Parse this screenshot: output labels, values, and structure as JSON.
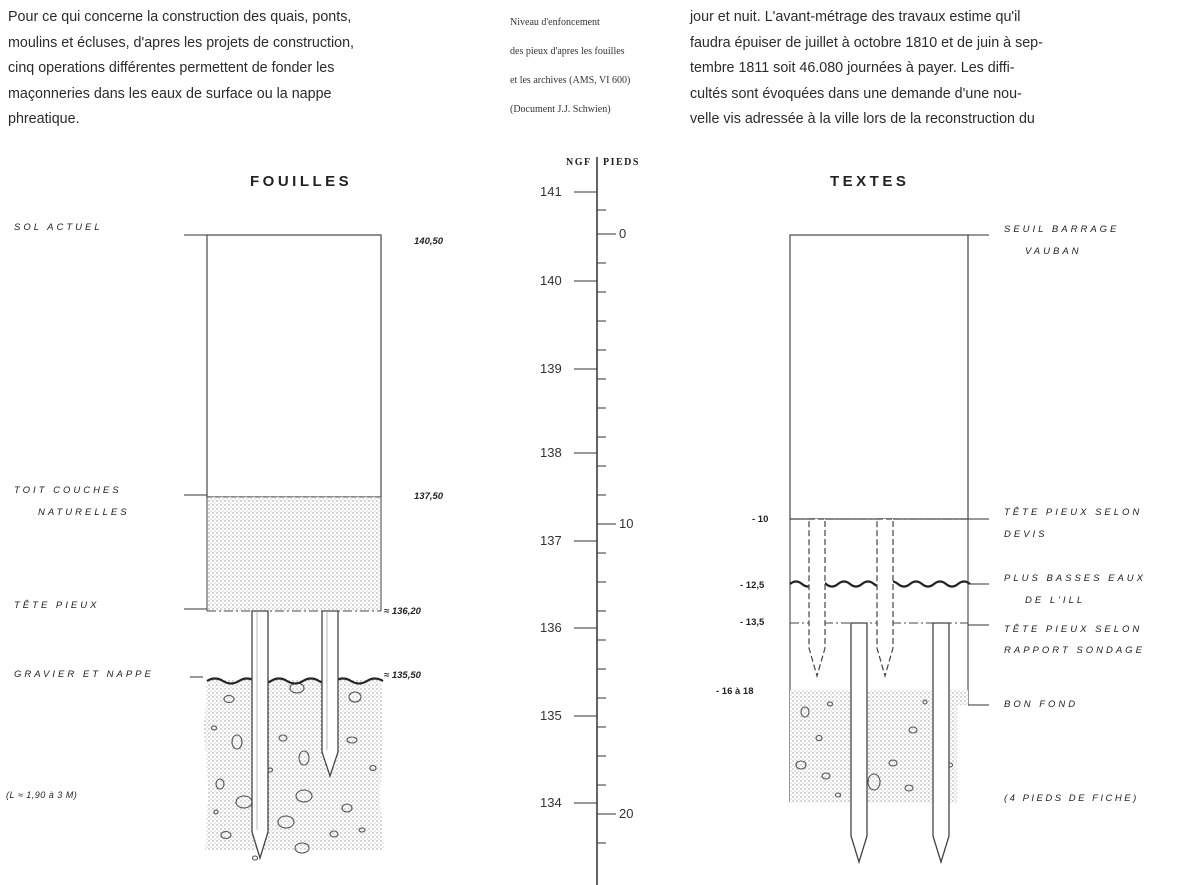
{
  "left_paragraph": [
    "Pour ce qui concerne la construction des quais, ponts,",
    "moulins et écluses, d'apres les projets de construction,",
    "cinq operations différentes permettent de fonder les",
    "maçonneries dans les eaux de surface ou la nappe",
    "phreatique."
  ],
  "caption": [
    "Niveau d'enfoncement",
    "des pieux d'apres les fouilles",
    "et les archives (AMS, VI 600)",
    "(Document J.J. Schwien)"
  ],
  "right_paragraph": [
    "jour et nuit. L'avant-métrage des travaux estime qu'il",
    "faudra épuiser de juillet à octobre 1810 et de juin à sep-",
    "tembre 1811 soit 46.080 journées à payer. Les diffi-",
    "cultés sont évoquées dans une demande d'une nou-",
    "velle vis adressée à la ville lors de la reconstruction du"
  ],
  "fouilles": {
    "title": "FOUILLES",
    "labels": {
      "sol_actuel": "SOL ACTUEL",
      "toit_1": "TOIT COUCHES",
      "toit_2": "NATURELLES",
      "tete_pieux": "TÊTE PIEUX",
      "gravier": "GRAVIER ET NAPPE",
      "length_note": "(L ≈ 1,90 à 3 M)"
    },
    "values": {
      "sol_actuel": "140,50",
      "toit": "137,50",
      "tete_pieux": "≈ 136,20",
      "gravier": "≈ 135,50"
    }
  },
  "scale": {
    "left_header": "NGF",
    "right_header": "PIEDS",
    "ngf_ticks": [
      "141",
      "140",
      "139",
      "138",
      "137",
      "136",
      "135",
      "134"
    ],
    "pieds_ticks": [
      "0",
      "10",
      "20"
    ]
  },
  "textes": {
    "title": "TEXTES",
    "labels": {
      "seuil_1": "SEUIL BARRAGE",
      "seuil_2": "VAUBAN",
      "tete_devis_1": "TÊTE PIEUX SELON",
      "tete_devis_2": "DEVIS",
      "basses_1": "PLUS BASSES EAUX",
      "basses_2": "DE L'ILL",
      "tete_sondage_1": "TÊTE PIEUX SELON",
      "tete_sondage_2": "RAPPORT SONDAGE",
      "bon_fond": "BON FOND",
      "fiche_note": "(4 PIEDS DE FICHE)"
    },
    "values": {
      "tete_devis": "- 10",
      "basses": "- 12,5",
      "tete_sondage": "- 13,5",
      "bon_fond": "- 16 à 18"
    }
  }
}
